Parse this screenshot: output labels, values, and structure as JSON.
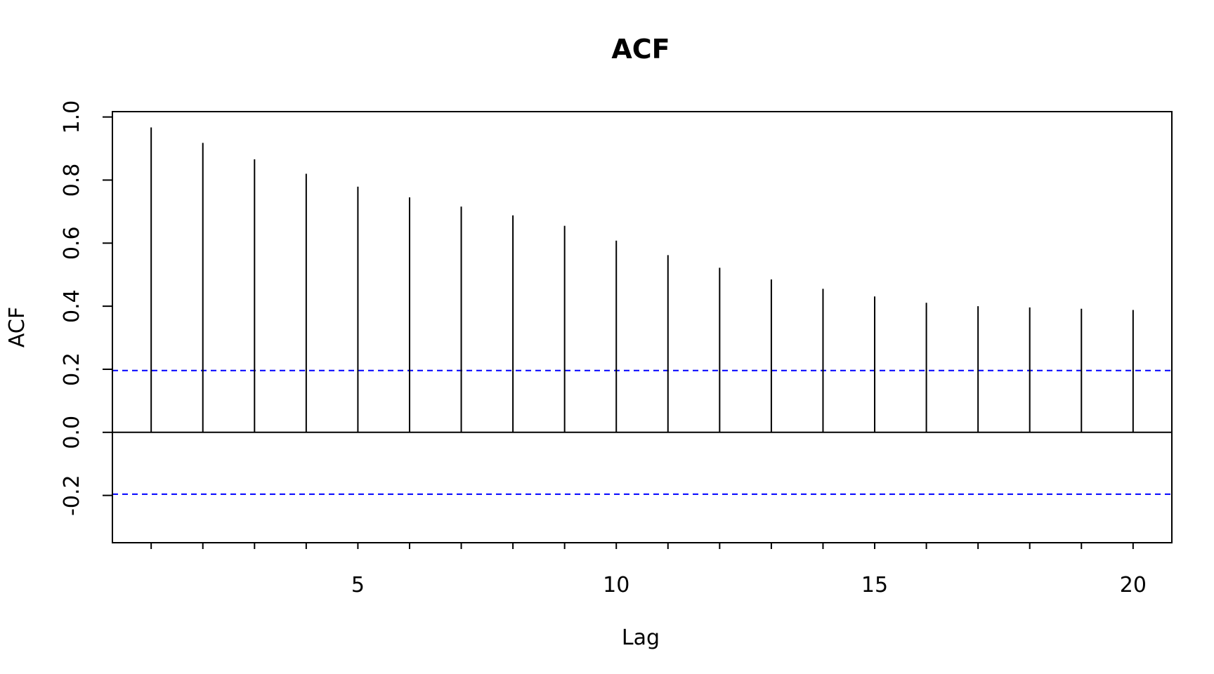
{
  "chart_data": {
    "type": "bar",
    "title": "ACF",
    "xlabel": "Lag",
    "ylabel": "ACF",
    "x": [
      1,
      2,
      3,
      4,
      5,
      6,
      7,
      8,
      9,
      10,
      11,
      12,
      13,
      14,
      15,
      16,
      17,
      18,
      19,
      20
    ],
    "values": [
      0.967,
      0.918,
      0.866,
      0.82,
      0.779,
      0.745,
      0.716,
      0.688,
      0.655,
      0.608,
      0.562,
      0.522,
      0.485,
      0.455,
      0.431,
      0.411,
      0.4,
      0.396,
      0.392,
      0.388
    ],
    "xlim": [
      0.25,
      20.75
    ],
    "ylim": [
      -0.35,
      1.017
    ],
    "xticks": [
      5,
      10,
      15,
      20
    ],
    "xticklabels": [
      "5",
      "10",
      "15",
      "20"
    ],
    "minor_xticks": [
      1,
      2,
      3,
      4,
      5,
      6,
      7,
      8,
      9,
      10,
      11,
      12,
      13,
      14,
      15,
      16,
      17,
      18,
      19,
      20
    ],
    "yticks": [
      -0.2,
      0.0,
      0.2,
      0.4,
      0.6,
      0.8,
      1.0
    ],
    "yticklabels": [
      "-0.2",
      "0.0",
      "0.2",
      "0.4",
      "0.6",
      "0.8",
      "1.0"
    ],
    "confidence_band": [
      -0.196,
      0.196
    ],
    "confidence_color": "#0000ff",
    "bar_color": "#000000",
    "grid": false
  }
}
